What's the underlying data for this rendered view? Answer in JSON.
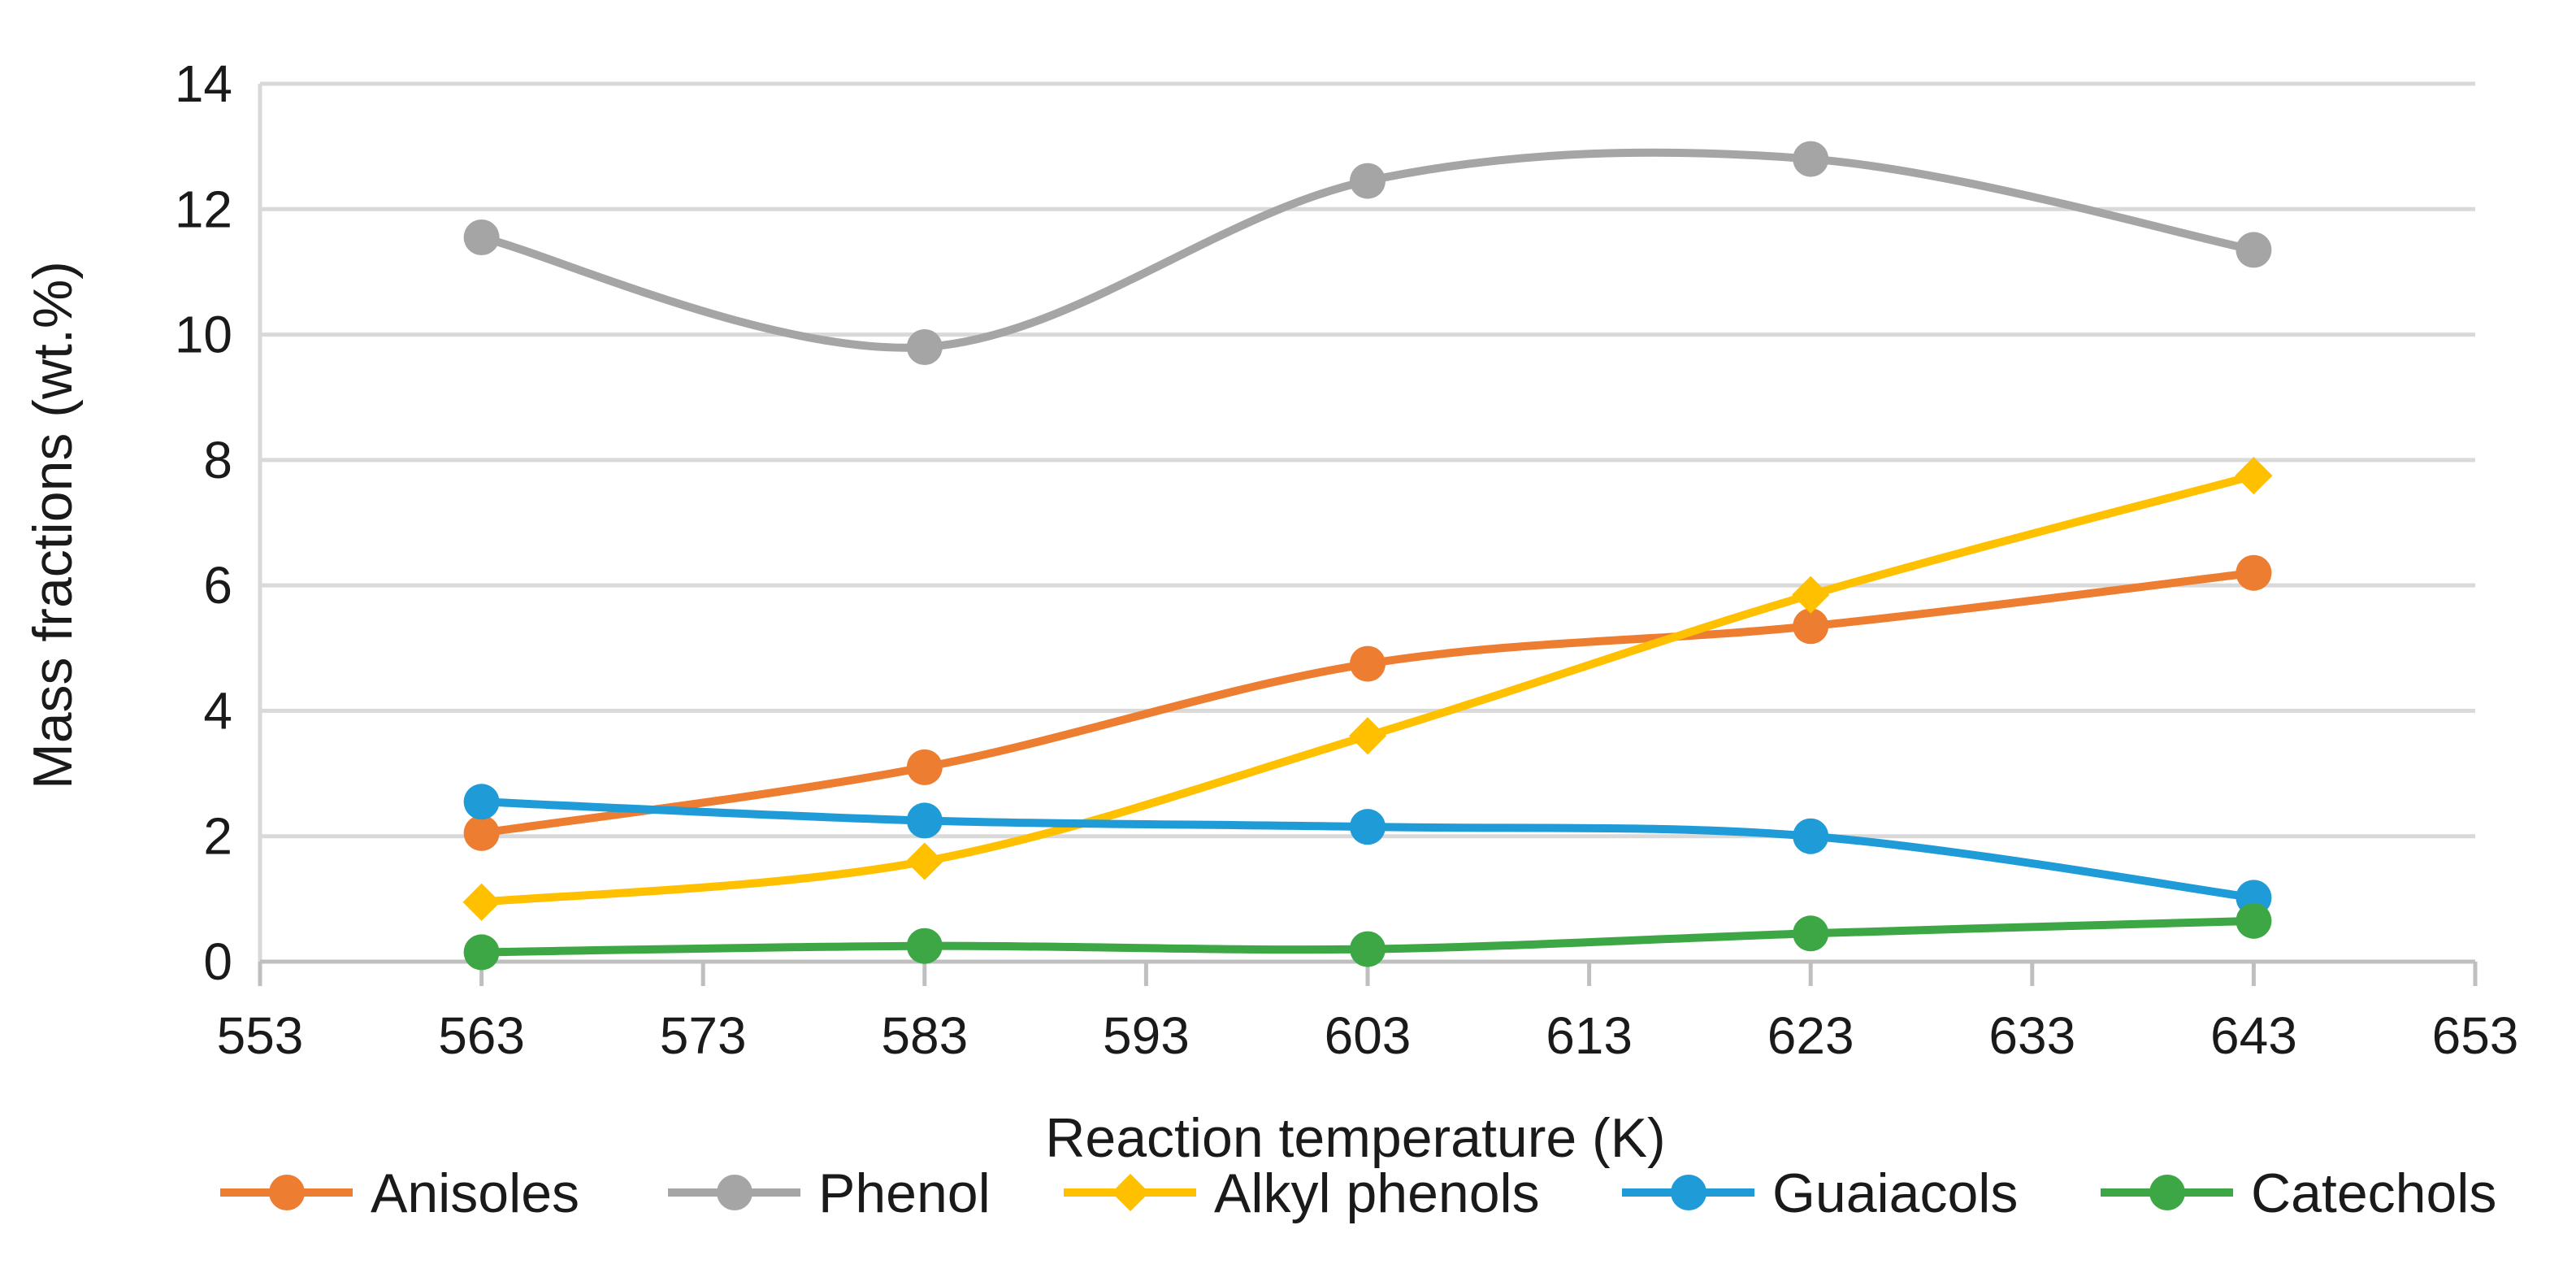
{
  "chart_data": {
    "type": "line",
    "title": "",
    "xlabel": "Reaction temperature (K)",
    "ylabel": "Mass fractions (wt.%)",
    "xlim": [
      553,
      653
    ],
    "ylim": [
      0,
      14
    ],
    "xticks": [
      553,
      563,
      573,
      583,
      593,
      603,
      613,
      623,
      633,
      643,
      653
    ],
    "yticks": [
      0,
      2,
      4,
      6,
      8,
      10,
      12,
      14
    ],
    "x": [
      563,
      583,
      603,
      623,
      643
    ],
    "grid": "horizontal",
    "smooth": true,
    "legend_position": "bottom",
    "series": [
      {
        "name": "Anisoles",
        "color": "#ed7d31",
        "marker": "circle",
        "values": [
          2.05,
          3.1,
          4.75,
          5.35,
          6.2
        ]
      },
      {
        "name": "Phenol",
        "color": "#a5a5a5",
        "marker": "circle",
        "values": [
          11.55,
          9.8,
          12.45,
          12.8,
          11.35
        ]
      },
      {
        "name": "Alkyl phenols",
        "color": "#ffc000",
        "marker": "diamond",
        "values": [
          0.95,
          1.6,
          3.6,
          5.85,
          7.75
        ]
      },
      {
        "name": "Guaiacols",
        "color": "#1f9bd7",
        "marker": "circle",
        "values": [
          2.55,
          2.25,
          2.15,
          2.0,
          1.02
        ]
      },
      {
        "name": "Catechols",
        "color": "#3ca744",
        "marker": "circle",
        "values": [
          0.15,
          0.25,
          0.2,
          0.45,
          0.65
        ]
      }
    ]
  }
}
